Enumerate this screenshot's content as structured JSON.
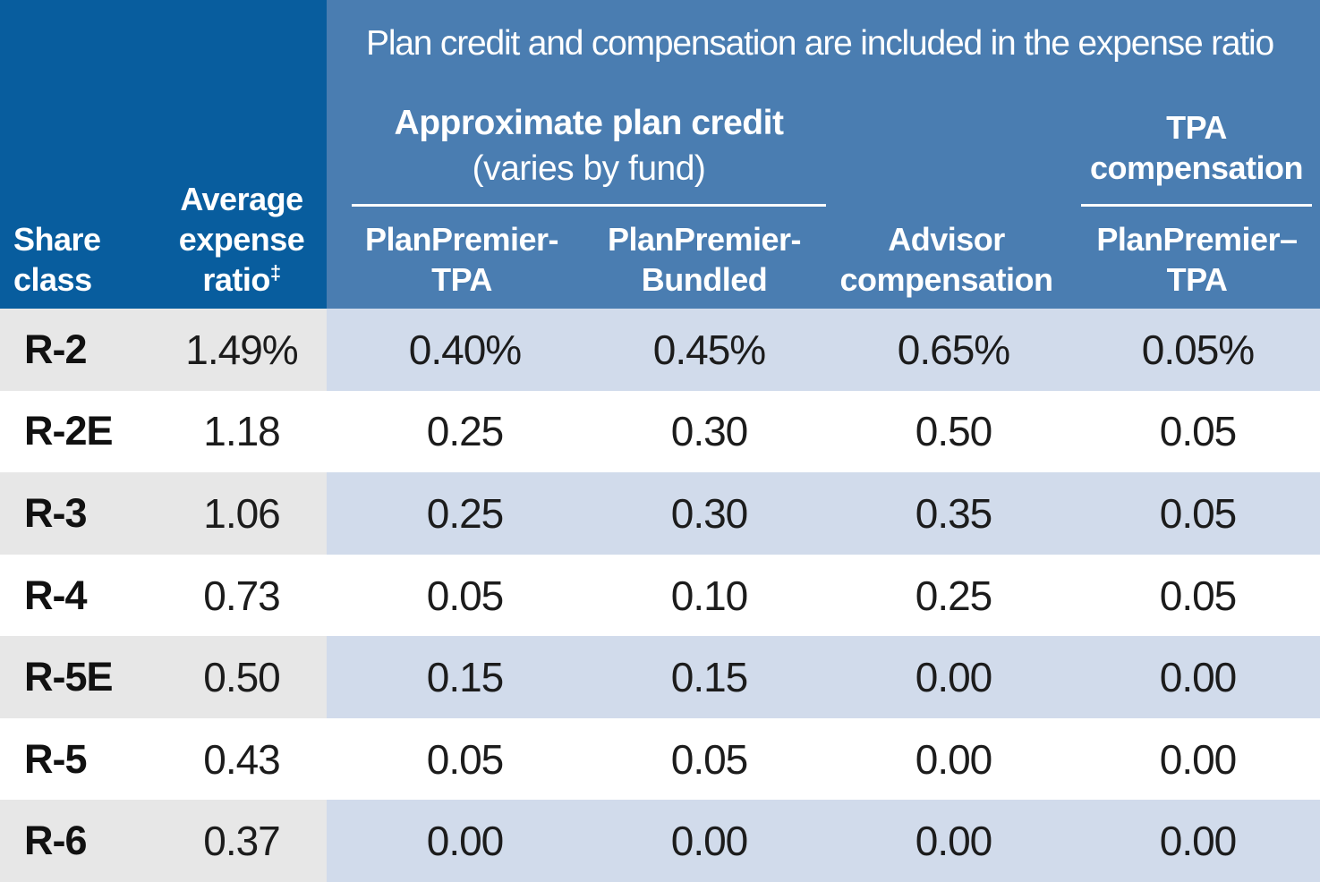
{
  "header": {
    "banner": "Plan credit and compensation are included in the expense ratio",
    "share_class_col": {
      "line1": "Share",
      "line2": "class"
    },
    "avg_expense_col": {
      "line1": "Average",
      "line2": "expense",
      "line3": "ratio",
      "footnote": "‡"
    },
    "plan_credit_group": {
      "title": "Approximate plan credit",
      "subtitle": "(varies by fund)"
    },
    "tpa_comp_group": {
      "line1": "TPA",
      "line2": "compensation"
    },
    "col_planpremier_tpa": {
      "line1": "PlanPremier-",
      "line2": "TPA"
    },
    "col_planpremier_bundled": {
      "line1": "PlanPremier-",
      "line2": "Bundled"
    },
    "col_advisor": {
      "line1": "Advisor",
      "line2": "compensation"
    },
    "col_tpa_planpremier": {
      "line1": "PlanPremier–",
      "line2": "TPA"
    }
  },
  "rows": [
    {
      "share_class": "R-2",
      "avg_expense": "1.49%",
      "pp_tpa": "0.40%",
      "pp_bundled": "0.45%",
      "advisor": "0.65%",
      "tpa_comp": "0.05%"
    },
    {
      "share_class": "R-2E",
      "avg_expense": "1.18",
      "pp_tpa": "0.25",
      "pp_bundled": "0.30",
      "advisor": "0.50",
      "tpa_comp": "0.05"
    },
    {
      "share_class": "R-3",
      "avg_expense": "1.06",
      "pp_tpa": "0.25",
      "pp_bundled": "0.30",
      "advisor": "0.35",
      "tpa_comp": "0.05"
    },
    {
      "share_class": "R-4",
      "avg_expense": "0.73",
      "pp_tpa": "0.05",
      "pp_bundled": "0.10",
      "advisor": "0.25",
      "tpa_comp": "0.05"
    },
    {
      "share_class": "R-5E",
      "avg_expense": "0.50",
      "pp_tpa": "0.15",
      "pp_bundled": "0.15",
      "advisor": "0.00",
      "tpa_comp": "0.00"
    },
    {
      "share_class": "R-5",
      "avg_expense": "0.43",
      "pp_tpa": "0.05",
      "pp_bundled": "0.05",
      "advisor": "0.00",
      "tpa_comp": "0.00"
    },
    {
      "share_class": "R-6",
      "avg_expense": "0.37",
      "pp_tpa": "0.00",
      "pp_bundled": "0.00",
      "advisor": "0.00",
      "tpa_comp": "0.00"
    }
  ],
  "colors": {
    "dark_blue_header": "#085d9e",
    "medium_blue_header": "#4a7db1",
    "shaded_row_gray": "#e7e7e7",
    "shaded_row_blue": "#d1dbeb",
    "row_white": "#ffffff",
    "header_text": "#ffffff",
    "data_text": "#1c1c1c"
  }
}
